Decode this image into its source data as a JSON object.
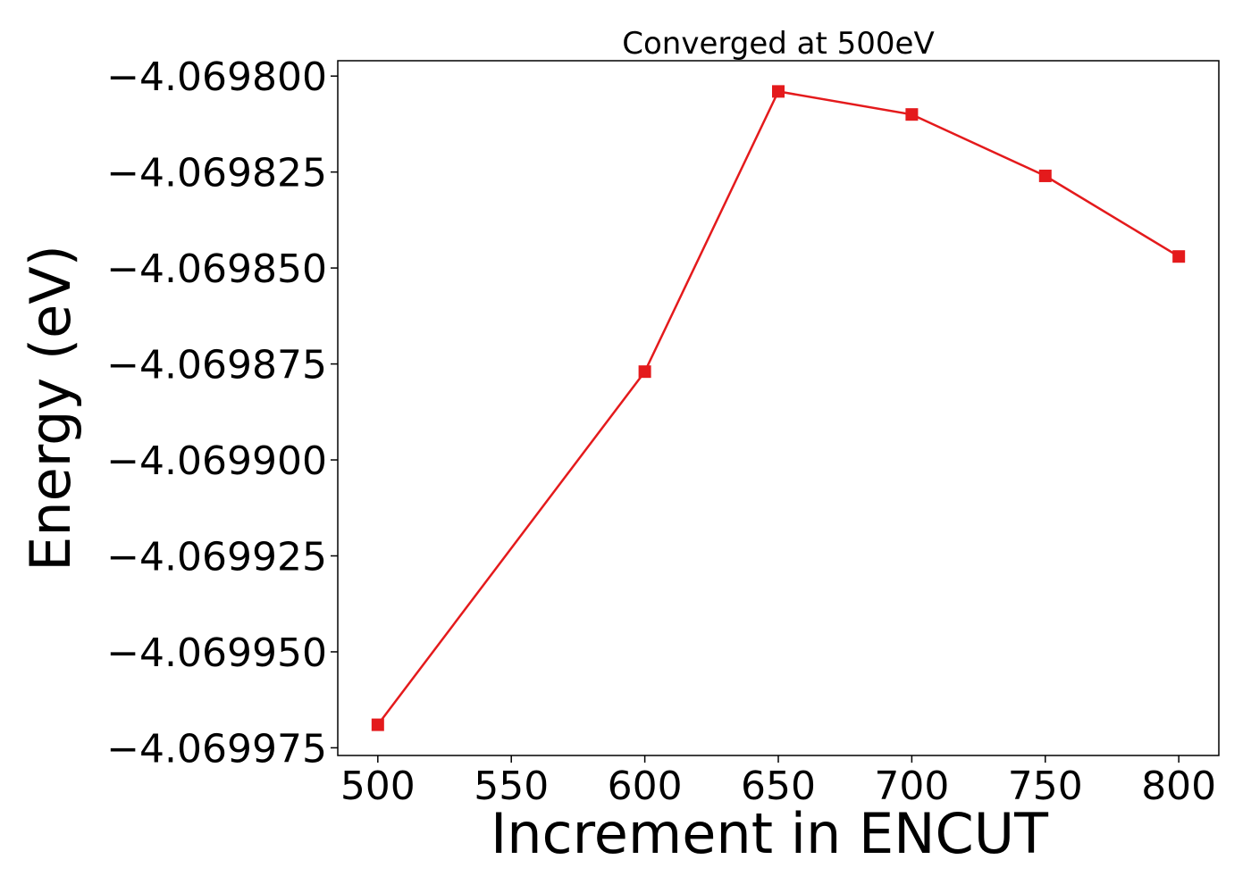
{
  "chart_data": {
    "type": "line",
    "title": "Converged at 500eV",
    "xlabel": "Increment in ENCUT",
    "ylabel": "Energy (eV)",
    "x": [
      500,
      600,
      650,
      700,
      750,
      800
    ],
    "series": [
      {
        "values": [
          -4.069969,
          -4.069877,
          -4.069804,
          -4.06981,
          -4.069826,
          -4.069847
        ],
        "color": "#e41a1c",
        "marker": "square"
      }
    ],
    "xticks": [
      500,
      550,
      600,
      650,
      700,
      750,
      800
    ],
    "xtick_labels": [
      "500",
      "550",
      "600",
      "650",
      "700",
      "750",
      "800"
    ],
    "yticks": [
      -4.0698,
      -4.069825,
      -4.06985,
      -4.069875,
      -4.0699,
      -4.069925,
      -4.06995,
      -4.069975
    ],
    "ytick_labels": [
      "−4.069800",
      "−4.069825",
      "−4.069850",
      "−4.069875",
      "−4.069900",
      "−4.069925",
      "−4.069950",
      "−4.069975"
    ],
    "xlim": [
      485,
      815
    ],
    "ylim": [
      -4.069977,
      -4.069796
    ],
    "grid": false,
    "legend": false
  }
}
